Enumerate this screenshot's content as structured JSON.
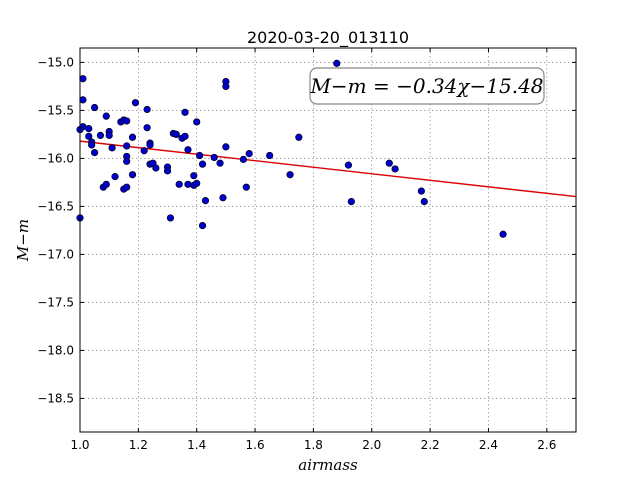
{
  "chart_data": {
    "type": "scatter",
    "title": "2020-03-20_013110",
    "xlabel": "airmass",
    "ylabel": "M−m",
    "xlim": [
      1.0,
      2.7
    ],
    "ylim": [
      -18.85,
      -14.85
    ],
    "x_ticks": [
      1.0,
      1.2,
      1.4,
      1.6,
      1.8,
      2.0,
      2.2,
      2.4,
      2.6
    ],
    "x_tick_labels": [
      "1.0",
      "1.2",
      "1.4",
      "1.6",
      "1.8",
      "2.0",
      "2.2",
      "2.4",
      "2.6"
    ],
    "y_ticks": [
      -15.0,
      -15.5,
      -16.0,
      -16.5,
      -17.0,
      -17.5,
      -18.0,
      -18.5
    ],
    "y_tick_labels": [
      "−15.0",
      "−15.5",
      "−16.0",
      "−16.5",
      "−17.0",
      "−17.5",
      "−18.0",
      "−18.5"
    ],
    "grid": true,
    "annotation": "M−m = −0.34χ−15.48",
    "fit": {
      "slope": -0.34,
      "intercept": -15.48,
      "color": "#dd0000"
    },
    "point_color": "#0000cc",
    "points": [
      [
        1.0,
        -16.62
      ],
      [
        1.01,
        -15.17
      ],
      [
        1.01,
        -15.39
      ],
      [
        1.01,
        -15.67
      ],
      [
        1.0,
        -15.7
      ],
      [
        1.03,
        -15.69
      ],
      [
        1.03,
        -15.77
      ],
      [
        1.04,
        -15.83
      ],
      [
        1.04,
        -15.86
      ],
      [
        1.05,
        -15.47
      ],
      [
        1.05,
        -15.94
      ],
      [
        1.07,
        -15.76
      ],
      [
        1.08,
        -16.3
      ],
      [
        1.09,
        -16.27
      ],
      [
        1.09,
        -15.56
      ],
      [
        1.1,
        -15.72
      ],
      [
        1.1,
        -15.76
      ],
      [
        1.11,
        -15.89
      ],
      [
        1.12,
        -16.19
      ],
      [
        1.14,
        -15.62
      ],
      [
        1.15,
        -15.6
      ],
      [
        1.16,
        -15.61
      ],
      [
        1.15,
        -16.32
      ],
      [
        1.16,
        -16.3
      ],
      [
        1.16,
        -15.87
      ],
      [
        1.16,
        -15.98
      ],
      [
        1.16,
        -16.03
      ],
      [
        1.18,
        -16.17
      ],
      [
        1.18,
        -15.78
      ],
      [
        1.19,
        -15.42
      ],
      [
        1.22,
        -15.92
      ],
      [
        1.23,
        -15.49
      ],
      [
        1.23,
        -15.68
      ],
      [
        1.24,
        -15.84
      ],
      [
        1.24,
        -15.86
      ],
      [
        1.24,
        -16.06
      ],
      [
        1.25,
        -16.05
      ],
      [
        1.26,
        -16.1
      ],
      [
        1.3,
        -16.09
      ],
      [
        1.3,
        -16.13
      ],
      [
        1.31,
        -16.62
      ],
      [
        1.32,
        -15.74
      ],
      [
        1.33,
        -15.75
      ],
      [
        1.34,
        -16.27
      ],
      [
        1.35,
        -15.79
      ],
      [
        1.36,
        -15.77
      ],
      [
        1.36,
        -15.52
      ],
      [
        1.37,
        -15.91
      ],
      [
        1.37,
        -16.27
      ],
      [
        1.39,
        -16.18
      ],
      [
        1.39,
        -16.28
      ],
      [
        1.4,
        -16.26
      ],
      [
        1.4,
        -15.62
      ],
      [
        1.41,
        -15.97
      ],
      [
        1.42,
        -16.7
      ],
      [
        1.42,
        -16.06
      ],
      [
        1.43,
        -16.44
      ],
      [
        1.46,
        -15.99
      ],
      [
        1.48,
        -16.05
      ],
      [
        1.49,
        -16.41
      ],
      [
        1.5,
        -15.2
      ],
      [
        1.5,
        -15.25
      ],
      [
        1.5,
        -15.88
      ],
      [
        1.56,
        -16.01
      ],
      [
        1.57,
        -16.3
      ],
      [
        1.58,
        -15.95
      ],
      [
        1.65,
        -15.97
      ],
      [
        1.72,
        -16.17
      ],
      [
        1.75,
        -15.78
      ],
      [
        1.88,
        -15.01
      ],
      [
        1.92,
        -16.07
      ],
      [
        1.93,
        -16.45
      ],
      [
        2.06,
        -16.05
      ],
      [
        2.08,
        -16.11
      ],
      [
        2.17,
        -16.34
      ],
      [
        2.18,
        -16.45
      ],
      [
        2.45,
        -16.79
      ]
    ]
  }
}
